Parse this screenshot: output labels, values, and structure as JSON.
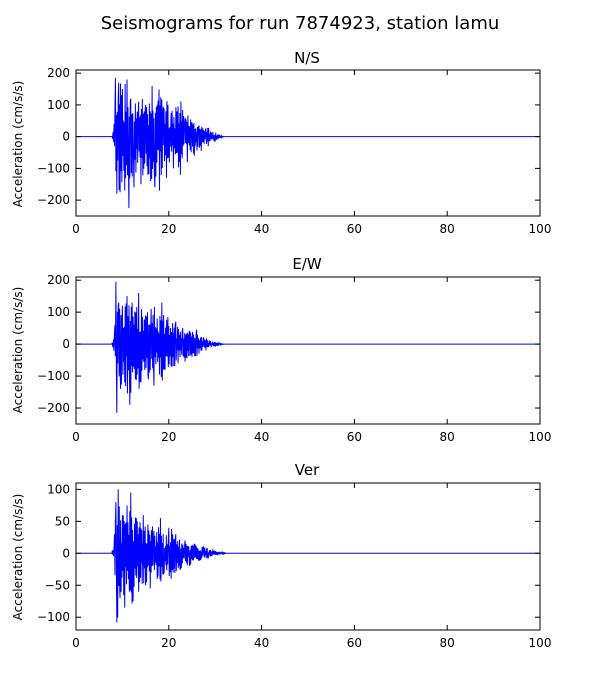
{
  "figure": {
    "title": "Seismograms for run 7874923, station lamu"
  },
  "colors": {
    "trace": "#0000ff",
    "axes": "#000000",
    "background": "#ffffff"
  },
  "chart_data": [
    {
      "type": "line",
      "title": "N/S",
      "xlabel": "",
      "ylabel": "Acceleration (cm/s/s)",
      "xlim": [
        0,
        100
      ],
      "ylim": [
        -250,
        210
      ],
      "xticks": [
        0,
        20,
        40,
        60,
        80,
        100
      ],
      "yticks": [
        -200,
        -100,
        0,
        100,
        200
      ],
      "grid": false,
      "series": [
        {
          "envelope": [
            [
              0,
              0
            ],
            [
              7,
              0.5
            ],
            [
              7.8,
              3
            ],
            [
              8.2,
              40
            ],
            [
              8.5,
              185
            ],
            [
              8.8,
              -180
            ],
            [
              9.2,
              170
            ],
            [
              9.5,
              -175
            ],
            [
              10,
              150
            ],
            [
              10.5,
              -170
            ],
            [
              11,
              180
            ],
            [
              11.4,
              -225
            ],
            [
              11.8,
              120
            ],
            [
              12.5,
              -160
            ],
            [
              13.5,
              110
            ],
            [
              14,
              -150
            ],
            [
              15,
              100
            ],
            [
              15.5,
              -120
            ],
            [
              16.4,
              160
            ],
            [
              17,
              -160
            ],
            [
              17.5,
              100
            ],
            [
              18,
              -170
            ],
            [
              18.8,
              95
            ],
            [
              19.5,
              -130
            ],
            [
              20.5,
              75
            ],
            [
              21,
              -100
            ],
            [
              22,
              95
            ],
            [
              22.5,
              -120
            ],
            [
              23.5,
              60
            ],
            [
              24,
              -80
            ],
            [
              25,
              45
            ],
            [
              25.5,
              -60
            ],
            [
              26.5,
              35
            ],
            [
              27,
              -45
            ],
            [
              28,
              25
            ],
            [
              28.5,
              -30
            ],
            [
              29.5,
              15
            ],
            [
              30,
              -15
            ],
            [
              31,
              5
            ],
            [
              32,
              0
            ],
            [
              100,
              0
            ]
          ]
        }
      ]
    },
    {
      "type": "line",
      "title": "E/W",
      "xlabel": "",
      "ylabel": "Acceleration (cm/s/s)",
      "xlim": [
        0,
        100
      ],
      "ylim": [
        -250,
        210
      ],
      "xticks": [
        0,
        20,
        40,
        60,
        80,
        100
      ],
      "yticks": [
        -200,
        -100,
        0,
        100,
        200
      ],
      "grid": false,
      "series": [
        {
          "envelope": [
            [
              0,
              0
            ],
            [
              6.8,
              0
            ],
            [
              7.3,
              -5
            ],
            [
              7.7,
              5
            ],
            [
              8,
              -10
            ],
            [
              8.4,
              60
            ],
            [
              8.6,
              195
            ],
            [
              8.8,
              -215
            ],
            [
              9.2,
              130
            ],
            [
              9.6,
              -140
            ],
            [
              10,
              120
            ],
            [
              10.5,
              -120
            ],
            [
              11,
              150
            ],
            [
              11.6,
              -190
            ],
            [
              12.1,
              130
            ],
            [
              12.8,
              -110
            ],
            [
              13.5,
              160
            ],
            [
              14,
              -120
            ],
            [
              15,
              90
            ],
            [
              15.6,
              -110
            ],
            [
              16.2,
              110
            ],
            [
              16.8,
              -130
            ],
            [
              17.5,
              80
            ],
            [
              18,
              -95
            ],
            [
              18.5,
              130
            ],
            [
              19.2,
              -80
            ],
            [
              19.8,
              85
            ],
            [
              20.5,
              -70
            ],
            [
              21.5,
              70
            ],
            [
              22,
              -60
            ],
            [
              23,
              50
            ],
            [
              23.5,
              -55
            ],
            [
              24.5,
              40
            ],
            [
              25,
              -40
            ],
            [
              26,
              45
            ],
            [
              26.5,
              -30
            ],
            [
              27.5,
              20
            ],
            [
              28,
              -20
            ],
            [
              29,
              10
            ],
            [
              30,
              -8
            ],
            [
              31,
              3
            ],
            [
              32,
              0
            ],
            [
              100,
              0
            ]
          ]
        }
      ]
    },
    {
      "type": "line",
      "title": "Ver",
      "xlabel": "",
      "ylabel": "Acceleration (cm/s/s)",
      "xlim": [
        0,
        100
      ],
      "ylim": [
        -120,
        110
      ],
      "xticks": [
        0,
        20,
        40,
        60,
        80,
        100
      ],
      "yticks": [
        -100,
        -50,
        0,
        50,
        100
      ],
      "grid": false,
      "series": [
        {
          "envelope": [
            [
              0,
              0
            ],
            [
              5,
              0
            ],
            [
              6.4,
              -2
            ],
            [
              6.9,
              2
            ],
            [
              7.5,
              -4
            ],
            [
              8,
              5
            ],
            [
              8.3,
              30
            ],
            [
              8.6,
              80
            ],
            [
              8.8,
              -108
            ],
            [
              9.1,
              100
            ],
            [
              9.5,
              -70
            ],
            [
              10,
              60
            ],
            [
              10.5,
              -85
            ],
            [
              11,
              75
            ],
            [
              11.5,
              -60
            ],
            [
              11.8,
              95
            ],
            [
              12.3,
              -75
            ],
            [
              13,
              55
            ],
            [
              13.5,
              -60
            ],
            [
              14.5,
              60
            ],
            [
              15,
              -50
            ],
            [
              15.5,
              45
            ],
            [
              16,
              -55
            ],
            [
              16.8,
              35
            ],
            [
              17.5,
              -40
            ],
            [
              18.2,
              55
            ],
            [
              19,
              -30
            ],
            [
              20,
              40
            ],
            [
              20.5,
              -40
            ],
            [
              21.5,
              30
            ],
            [
              22.5,
              -25
            ],
            [
              23.5,
              20
            ],
            [
              24.5,
              -20
            ],
            [
              25.5,
              15
            ],
            [
              26.5,
              -12
            ],
            [
              27.5,
              10
            ],
            [
              28.5,
              -8
            ],
            [
              29.5,
              5
            ],
            [
              30.5,
              -3
            ],
            [
              31.5,
              2
            ],
            [
              32.5,
              0
            ],
            [
              100,
              0
            ]
          ]
        }
      ]
    }
  ]
}
